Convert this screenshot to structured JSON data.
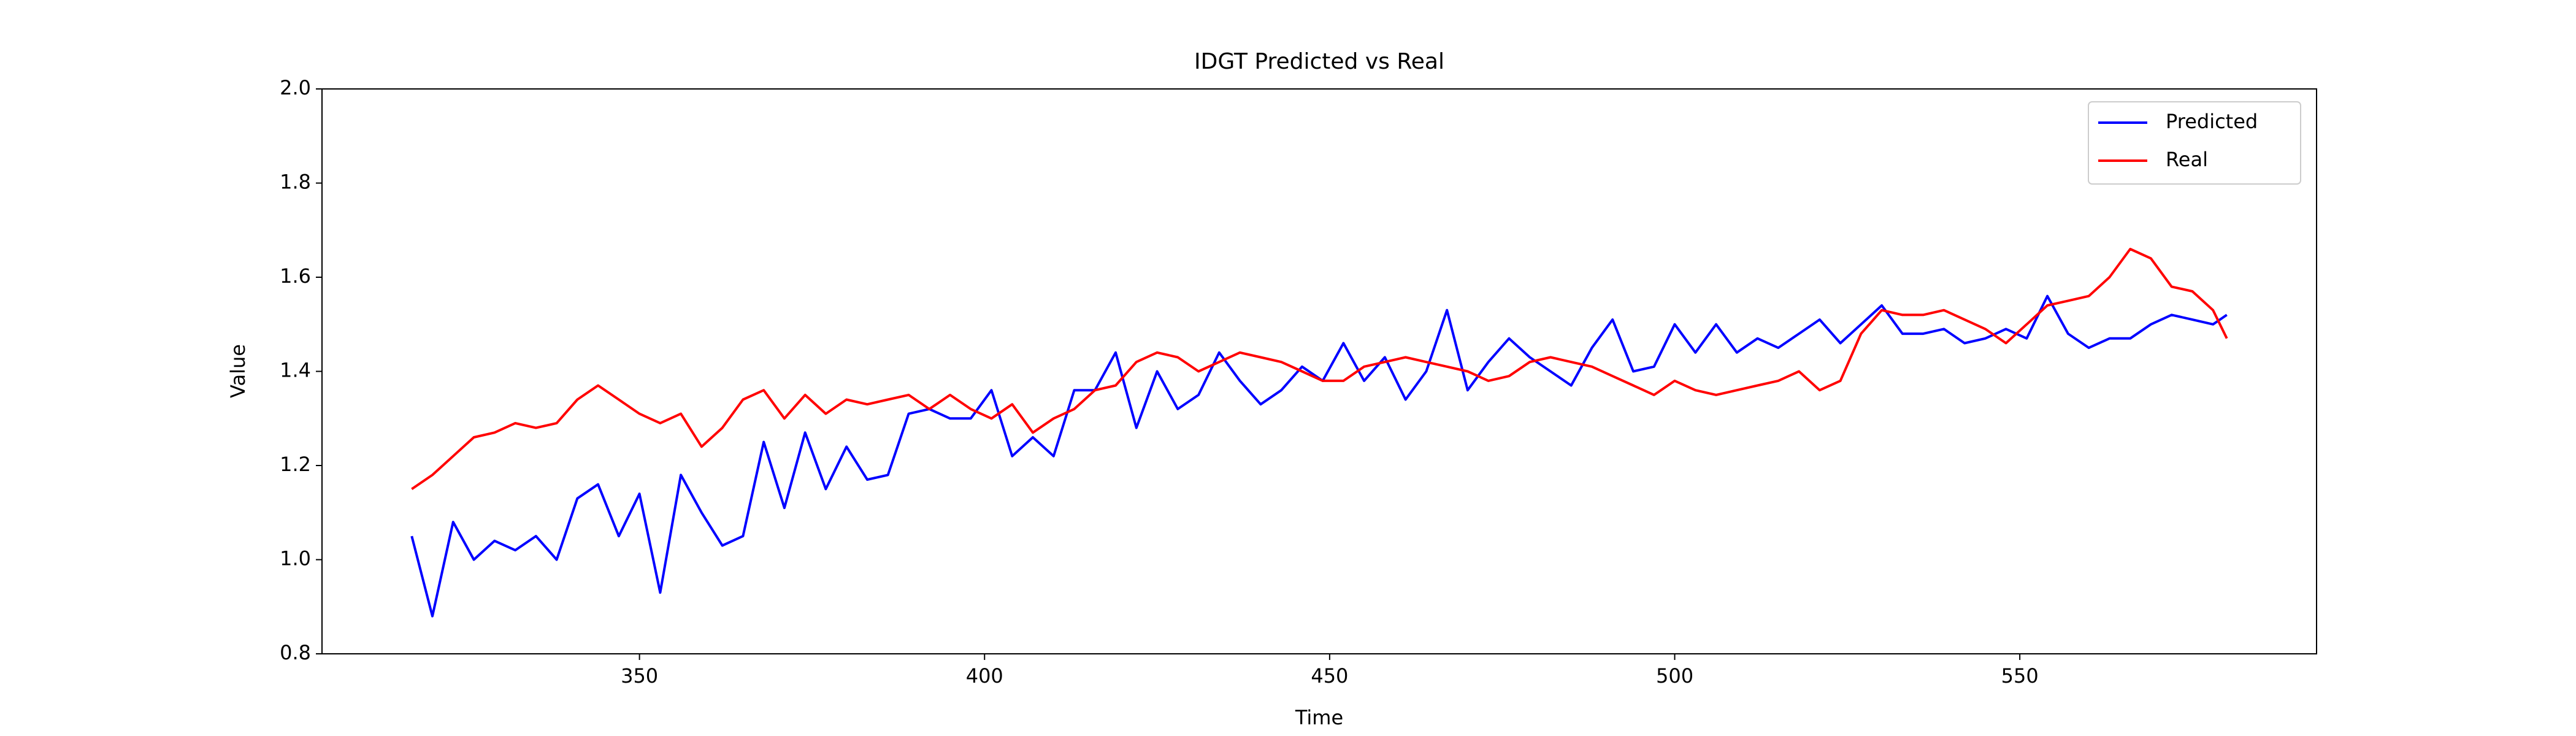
{
  "chart_data": {
    "type": "line",
    "title": "IDGT Predicted vs Real",
    "xlabel": "Time",
    "ylabel": "Value",
    "x": [
      317,
      320,
      323,
      326,
      329,
      332,
      335,
      338,
      341,
      344,
      347,
      350,
      353,
      356,
      359,
      362,
      365,
      368,
      371,
      374,
      377,
      380,
      383,
      386,
      389,
      392,
      395,
      398,
      401,
      404,
      407,
      410,
      413,
      416,
      419,
      422,
      425,
      428,
      431,
      434,
      437,
      440,
      443,
      446,
      449,
      452,
      455,
      458,
      461,
      464,
      467,
      470,
      473,
      476,
      479,
      482,
      485,
      488,
      491,
      494,
      497,
      500,
      503,
      506,
      509,
      512,
      515,
      518,
      521,
      524,
      527,
      530,
      533,
      536,
      539,
      542,
      545,
      548,
      551,
      554,
      557,
      560,
      563,
      566,
      569,
      572,
      575,
      578,
      580
    ],
    "series": [
      {
        "name": "Predicted",
        "color": "#0000ff",
        "values": [
          1.05,
          0.88,
          1.08,
          1.0,
          1.04,
          1.02,
          1.05,
          1.0,
          1.13,
          1.16,
          1.05,
          1.14,
          0.93,
          1.18,
          1.1,
          1.03,
          1.05,
          1.25,
          1.11,
          1.27,
          1.15,
          1.24,
          1.17,
          1.18,
          1.31,
          1.32,
          1.3,
          1.3,
          1.36,
          1.22,
          1.26,
          1.22,
          1.36,
          1.36,
          1.44,
          1.28,
          1.4,
          1.32,
          1.35,
          1.44,
          1.38,
          1.33,
          1.36,
          1.41,
          1.38,
          1.46,
          1.38,
          1.43,
          1.34,
          1.4,
          1.53,
          1.36,
          1.42,
          1.47,
          1.43,
          1.4,
          1.37,
          1.45,
          1.51,
          1.4,
          1.41,
          1.5,
          1.44,
          1.5,
          1.44,
          1.47,
          1.45,
          1.48,
          1.51,
          1.46,
          1.5,
          1.54,
          1.48,
          1.48,
          1.49,
          1.46,
          1.47,
          1.49,
          1.47,
          1.56,
          1.48,
          1.45,
          1.47,
          1.47,
          1.5,
          1.52,
          1.51,
          1.5,
          1.52
        ]
      },
      {
        "name": "Real",
        "color": "#ff0000",
        "values": [
          1.15,
          1.18,
          1.22,
          1.26,
          1.27,
          1.29,
          1.28,
          1.29,
          1.34,
          1.37,
          1.34,
          1.31,
          1.29,
          1.31,
          1.24,
          1.28,
          1.34,
          1.36,
          1.3,
          1.35,
          1.31,
          1.34,
          1.33,
          1.34,
          1.35,
          1.32,
          1.35,
          1.32,
          1.3,
          1.33,
          1.27,
          1.3,
          1.32,
          1.36,
          1.37,
          1.42,
          1.44,
          1.43,
          1.4,
          1.42,
          1.44,
          1.43,
          1.42,
          1.4,
          1.38,
          1.38,
          1.41,
          1.42,
          1.43,
          1.42,
          1.41,
          1.4,
          1.38,
          1.39,
          1.42,
          1.43,
          1.42,
          1.41,
          1.39,
          1.37,
          1.35,
          1.38,
          1.36,
          1.35,
          1.36,
          1.37,
          1.38,
          1.4,
          1.36,
          1.38,
          1.48,
          1.53,
          1.52,
          1.52,
          1.53,
          1.51,
          1.49,
          1.46,
          1.5,
          1.54,
          1.55,
          1.56,
          1.6,
          1.66,
          1.64,
          1.58,
          1.57,
          1.53,
          1.47
        ]
      }
    ],
    "xlim": [
      304,
      593
    ],
    "xticks": [
      350,
      400,
      450,
      500,
      550
    ],
    "ylim": [
      0.8,
      2.0
    ],
    "yticks": [
      0.8,
      {
        "value": 1,
        "label": "1.0"
      },
      1.2,
      1.4,
      1.6,
      1.8,
      {
        "value": 2,
        "label": "2.0"
      }
    ],
    "legend": "upper right"
  }
}
